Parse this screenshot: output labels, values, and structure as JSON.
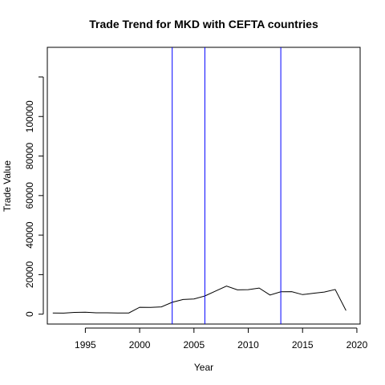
{
  "chart_data": {
    "type": "line",
    "title": "Trade Trend for MKD with CEFTA countries",
    "xlabel": "Year",
    "ylabel": "Trade Value",
    "xlim": [
      1991.5,
      2020.3
    ],
    "ylim": [
      -5000,
      135000
    ],
    "x_ticks": [
      1995,
      2000,
      2005,
      2010,
      2015,
      2020
    ],
    "x_tick_labels": [
      "1995",
      "2000",
      "2005",
      "2010",
      "2015",
      "2020"
    ],
    "y_ticks": [
      0,
      20000,
      40000,
      60000,
      80000,
      100000,
      120000
    ],
    "y_tick_labels": [
      "0",
      "20000",
      "40000",
      "60000",
      "80000",
      "100000",
      ""
    ],
    "grid": false,
    "series": [
      {
        "x": [
          1992,
          1993,
          1994,
          1995,
          1996,
          1997,
          1998,
          1999,
          2000,
          2001,
          2002,
          2003,
          2004,
          2005,
          2006,
          2007,
          2008,
          2009,
          2010,
          2011,
          2012,
          2013,
          2014,
          2015,
          2016,
          2017,
          2018,
          2019
        ],
        "y": [
          600,
          500,
          900,
          1000,
          700,
          700,
          600,
          600,
          3500,
          3400,
          3700,
          6000,
          7400,
          7700,
          9200,
          11700,
          14200,
          12300,
          12400,
          13200,
          9700,
          11300,
          11400,
          9900,
          10600,
          11200,
          12500,
          1800
        ],
        "color": "#000000"
      }
    ],
    "vlines": {
      "x": [
        2003,
        2006,
        2013
      ],
      "color": "#0000ff"
    }
  }
}
